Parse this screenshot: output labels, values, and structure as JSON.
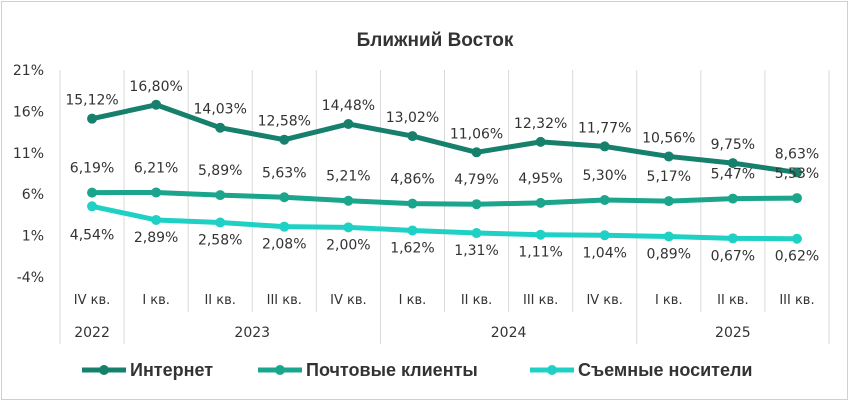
{
  "chart_data": {
    "type": "line",
    "title": "Ближний Восток",
    "categories": [
      "IV кв.",
      "I кв.",
      "II кв.",
      "III кв.",
      "IV кв.",
      "I кв.",
      "II кв.",
      "III кв.",
      "IV кв.",
      "I кв.",
      "II кв.",
      "III кв."
    ],
    "year_groups": [
      {
        "label": "2022",
        "start": 0,
        "end": 0
      },
      {
        "label": "2023",
        "start": 1,
        "end": 4
      },
      {
        "label": "2024",
        "start": 5,
        "end": 8
      },
      {
        "label": "2025",
        "start": 9,
        "end": 11
      }
    ],
    "yticks": [
      "21%",
      "16%",
      "11%",
      "6%",
      "1%",
      "-4%"
    ],
    "ylim": [
      -4,
      21
    ],
    "series": [
      {
        "name": "Интернет",
        "color": "#17806d",
        "values": [
          15.12,
          16.8,
          14.03,
          12.58,
          14.48,
          13.02,
          11.06,
          12.32,
          11.77,
          10.56,
          9.75,
          8.63
        ],
        "labels": [
          "15,12%",
          "16,80%",
          "14,03%",
          "12,58%",
          "14,48%",
          "13,02%",
          "11,06%",
          "12,32%",
          "11,77%",
          "10,56%",
          "9,75%",
          "8,63%"
        ]
      },
      {
        "name": "Почтовые клиенты",
        "color": "#1aa58c",
        "values": [
          6.19,
          6.21,
          5.89,
          5.63,
          5.21,
          4.86,
          4.79,
          4.95,
          5.3,
          5.17,
          5.47,
          5.53
        ],
        "labels": [
          "6,19%",
          "6,21%",
          "5,89%",
          "5,63%",
          "5,21%",
          "4,86%",
          "4,79%",
          "4,95%",
          "5,30%",
          "5,17%",
          "5,47%",
          "5,53%"
        ]
      },
      {
        "name": "Съемные носители",
        "color": "#1fd1c4",
        "values": [
          4.54,
          2.89,
          2.58,
          2.08,
          2.0,
          1.62,
          1.31,
          1.11,
          1.04,
          0.89,
          0.67,
          0.62
        ],
        "labels": [
          "4,54%",
          "2,89%",
          "2,58%",
          "2,08%",
          "2,00%",
          "1,62%",
          "1,31%",
          "1,11%",
          "1,04%",
          "0,89%",
          "0,67%",
          "0,62%"
        ]
      }
    ],
    "grid": "vertical",
    "legend": "bottom"
  }
}
